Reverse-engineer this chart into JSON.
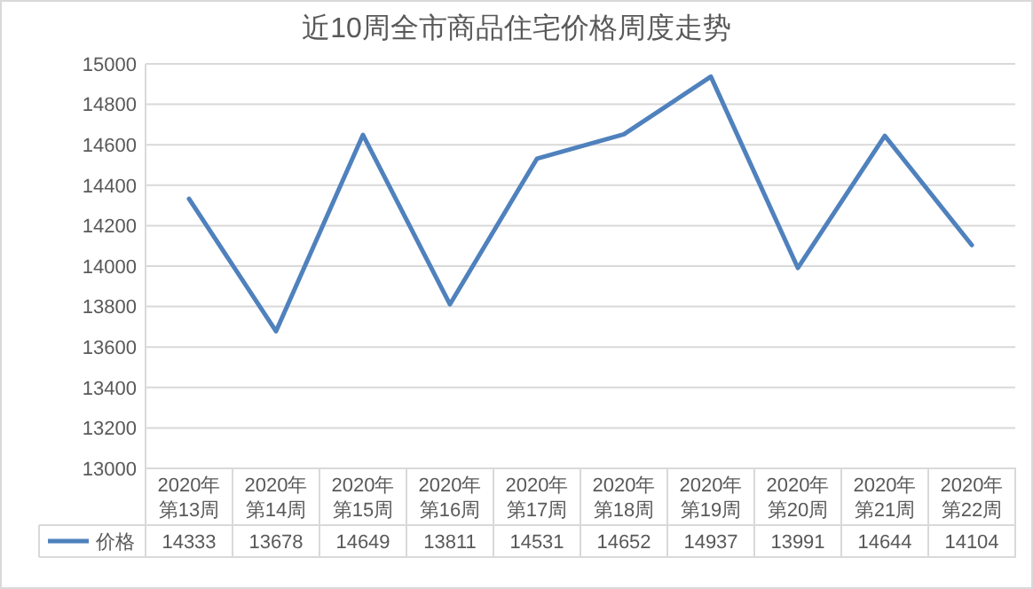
{
  "chart_data": {
    "type": "line",
    "title": "近10周全市商品住宅价格周度走势",
    "categories": [
      "2020年第13周",
      "2020年第14周",
      "2020年第15周",
      "2020年第16周",
      "2020年第17周",
      "2020年第18周",
      "2020年第19周",
      "2020年第20周",
      "2020年第21周",
      "2020年第22周"
    ],
    "series": [
      {
        "name": "价格",
        "color": "#4f81bd",
        "values": [
          14333,
          13678,
          14649,
          13811,
          14531,
          14652,
          14937,
          13991,
          14644,
          14104
        ]
      }
    ],
    "ylim": [
      13000,
      15000
    ],
    "yticks": [
      13000,
      13200,
      13400,
      13600,
      13800,
      14000,
      14200,
      14400,
      14600,
      14800,
      15000
    ],
    "grid": "y",
    "legend": "bottom",
    "data_labels": true,
    "marker": "none",
    "line_style": "solid"
  }
}
